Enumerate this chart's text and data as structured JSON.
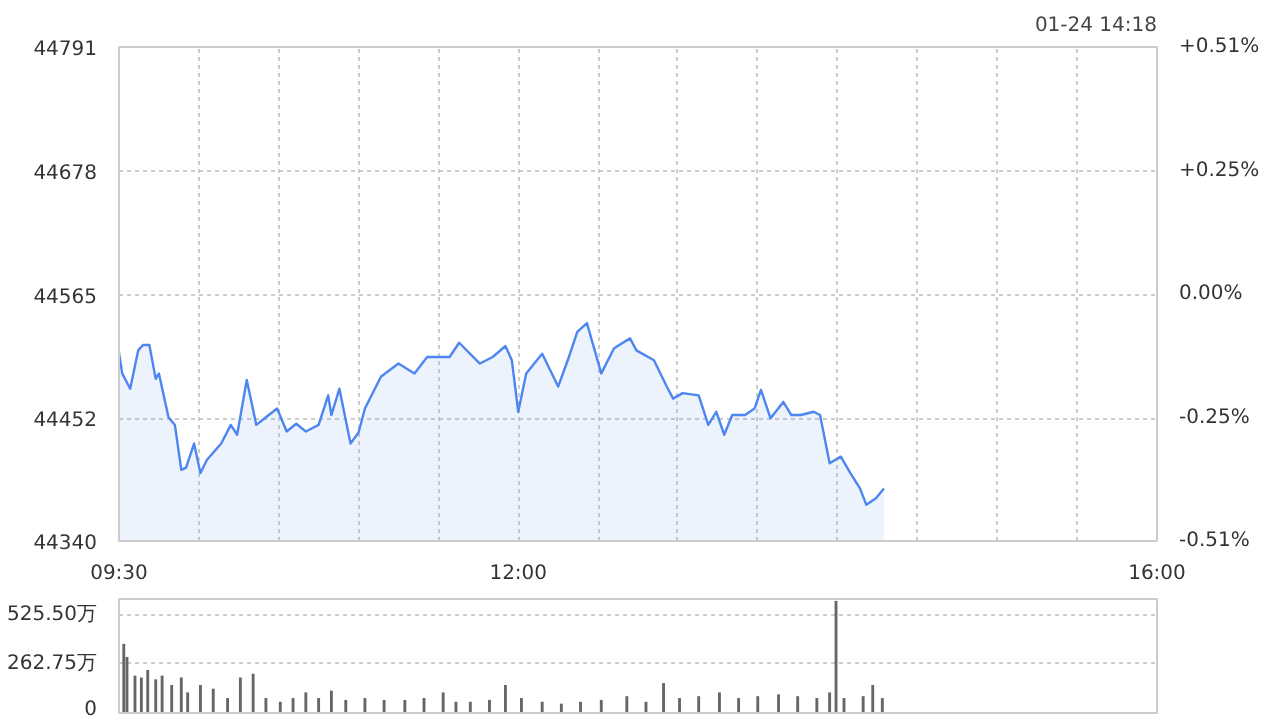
{
  "chart_data": [
    {
      "type": "area",
      "annotations": [
        "01-24 14:18"
      ],
      "x": [
        9.5,
        9.52,
        9.57,
        9.62,
        9.65,
        9.69,
        9.73,
        9.75,
        9.81,
        9.85,
        9.89,
        9.92,
        9.97,
        10.01,
        10.05,
        10.14,
        10.2,
        10.24,
        10.3,
        10.36,
        10.42,
        10.49,
        10.55,
        10.61,
        10.67,
        10.75,
        10.81,
        10.83,
        10.88,
        10.95,
        11.0,
        11.04,
        11.14,
        11.25,
        11.35,
        11.43,
        11.49,
        11.57,
        11.63,
        11.76,
        11.84,
        11.92,
        11.96,
        12.0,
        12.05,
        12.15,
        12.25,
        12.31,
        12.37,
        12.43,
        12.52,
        12.6,
        12.7,
        12.74,
        12.85,
        12.93,
        12.97,
        13.03,
        13.13,
        13.19,
        13.24,
        13.29,
        13.34,
        13.42,
        13.48,
        13.52,
        13.58,
        13.66,
        13.71,
        13.77,
        13.85,
        13.89,
        13.95,
        14.02,
        14.08,
        14.14,
        14.18,
        14.24,
        14.29
      ],
      "series": [
        {
          "color": "#4d86f0",
          "values": [
            44512,
            44493,
            44479,
            44514,
            44519,
            44519,
            44488,
            44493,
            44453,
            44446,
            44405,
            44407,
            44429,
            44402,
            44414,
            44429,
            44446,
            44437,
            44487,
            44446,
            44453,
            44461,
            44440,
            44447,
            44440,
            44446,
            44473,
            44455,
            44479,
            44429,
            44439,
            44461,
            44490,
            44502,
            44493,
            44508,
            44508,
            44508,
            44521,
            44502,
            44508,
            44518,
            44505,
            44458,
            44493,
            44511,
            44481,
            44505,
            44531,
            44539,
            44493,
            44516,
            44525,
            44514,
            44505,
            44481,
            44470,
            44475,
            44473,
            44446,
            44458,
            44437,
            44455,
            44455,
            44461,
            44478,
            44452,
            44467,
            44455,
            44455,
            44458,
            44455,
            44411,
            44417,
            44402,
            44388,
            44373,
            44379,
            44388
          ]
        }
      ],
      "xlim": [
        9.5,
        16
      ],
      "xticks": [
        {
          "value": 9.5,
          "label": "09:30"
        },
        {
          "value": 10,
          "label": null
        },
        {
          "value": 10.5,
          "label": null
        },
        {
          "value": 11,
          "label": null
        },
        {
          "value": 11.5,
          "label": null
        },
        {
          "value": 12,
          "label": "12:00"
        },
        {
          "value": 12.5,
          "label": null
        },
        {
          "value": 13,
          "label": null
        },
        {
          "value": 13.5,
          "label": null
        },
        {
          "value": 14,
          "label": null
        },
        {
          "value": 14.5,
          "label": null
        },
        {
          "value": 15,
          "label": null
        },
        {
          "value": 15.5,
          "label": null
        },
        {
          "value": 16,
          "label": "16:00"
        }
      ],
      "ylim": [
        44340,
        44791
      ],
      "yticks": [
        44340,
        44452,
        44565,
        44678,
        44791
      ],
      "y2lim": [
        -0.51,
        0.51
      ],
      "y2ticks": [
        {
          "value": -0.51,
          "label": "-0.51%"
        },
        {
          "value": -0.255,
          "label": "-0.25%"
        },
        {
          "value": 0,
          "label": "0.00%"
        },
        {
          "value": 0.255,
          "label": "+0.25%"
        },
        {
          "value": 0.51,
          "label": "+0.51%"
        }
      ],
      "grid": true
    },
    {
      "type": "bar",
      "x": [
        9.53,
        9.55,
        9.6,
        9.64,
        9.68,
        9.73,
        9.77,
        9.83,
        9.89,
        9.93,
        10.01,
        10.09,
        10.18,
        10.26,
        10.34,
        10.42,
        10.51,
        10.59,
        10.67,
        10.75,
        10.83,
        10.92,
        11.04,
        11.16,
        11.29,
        11.41,
        11.53,
        11.61,
        11.7,
        11.82,
        11.92,
        12.02,
        12.15,
        12.27,
        12.39,
        12.52,
        12.68,
        12.8,
        12.91,
        13.01,
        13.13,
        13.26,
        13.38,
        13.5,
        13.63,
        13.75,
        13.87,
        13.95,
        13.99,
        14.04,
        14.16,
        14.22,
        14.28
      ],
      "series": [
        {
          "color": "#666666",
          "values": [
            370,
            300,
            200,
            190,
            230,
            180,
            200,
            150,
            190,
            110,
            150,
            130,
            80,
            190,
            210,
            80,
            60,
            80,
            110,
            80,
            120,
            70,
            80,
            70,
            70,
            80,
            110,
            60,
            60,
            70,
            150,
            80,
            60,
            50,
            60,
            70,
            90,
            60,
            160,
            80,
            90,
            110,
            80,
            90,
            100,
            90,
            80,
            110,
            600,
            80,
            90,
            150,
            80
          ]
        }
      ],
      "xlim": [
        9.5,
        16
      ],
      "ylim": [
        0,
        610
      ],
      "yticks": [
        0,
        {
          "value": 262.75,
          "label": "262.75万"
        },
        {
          "value": 525.5,
          "label": "525.50万"
        }
      ],
      "tick_labels": "y",
      "grid": "y"
    }
  ]
}
